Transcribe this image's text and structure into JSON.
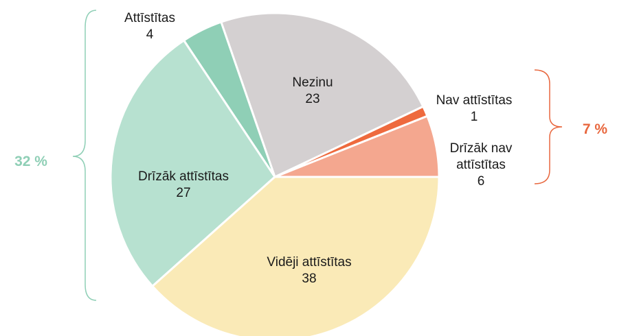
{
  "chart_data": {
    "type": "pie",
    "categories": [
      "Drīzāk nav attīstītas",
      "Nav attīstītas",
      "Nezinu",
      "Attīstītas",
      "Drīzāk attīstītas",
      "Vidēji attīstītas"
    ],
    "values": [
      6,
      1,
      23,
      4,
      27,
      38
    ],
    "colors": [
      "#f4a78f",
      "#ee6a3e",
      "#d4d0d1",
      "#8fcfb6",
      "#b7e1d0",
      "#faeab7"
    ],
    "annotations": [
      {
        "text": "32 %",
        "color": "#8fcfb6"
      },
      {
        "text": "7 %",
        "color": "#e8673e"
      }
    ]
  }
}
